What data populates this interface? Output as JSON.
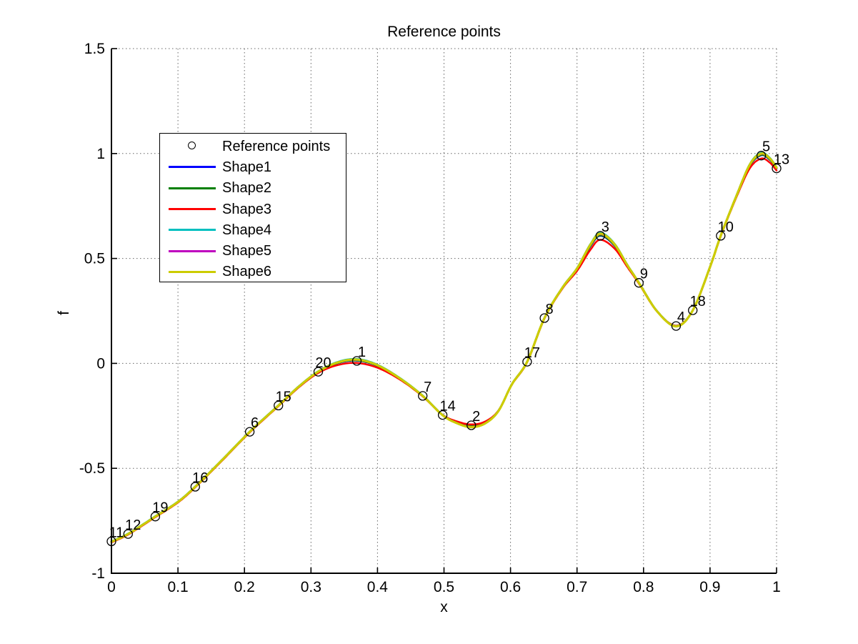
{
  "title": "Reference points",
  "chart_data": {
    "type": "line",
    "title": "Reference points",
    "xlabel": "x",
    "ylabel": "f",
    "xlim": [
      0,
      1
    ],
    "ylim": [
      -1,
      1.5
    ],
    "grid": "dotted",
    "grid_color": "#666666",
    "axis_color": "#000000",
    "x_ticks": {
      "values": [
        0,
        0.1,
        0.2,
        0.3,
        0.4,
        0.5,
        0.6,
        0.7,
        0.8,
        0.9,
        1
      ],
      "labels": [
        "0",
        "0.1",
        "0.2",
        "0.3",
        "0.4",
        "0.5",
        "0.6",
        "0.7",
        "0.8",
        "0.9",
        "1"
      ]
    },
    "y_ticks": {
      "values": [
        -1,
        -0.5,
        0,
        0.5,
        1,
        1.5
      ],
      "labels": [
        "-1",
        "-0.5",
        "0",
        "0.5",
        "1",
        "1.5"
      ]
    },
    "legend": {
      "position": "upper-left",
      "entries": [
        {
          "label": "Reference points",
          "type": "marker",
          "marker": "circle",
          "color": "#000000"
        },
        {
          "label": "Shape1",
          "type": "line",
          "color": "#0000FF"
        },
        {
          "label": "Shape2",
          "type": "line",
          "color": "#007F00"
        },
        {
          "label": "Shape3",
          "type": "line",
          "color": "#FF0000"
        },
        {
          "label": "Shape4",
          "type": "line",
          "color": "#00BFBF"
        },
        {
          "label": "Shape5",
          "type": "line",
          "color": "#BF00BF"
        },
        {
          "label": "Shape6",
          "type": "line",
          "color": "#CCCC00"
        }
      ]
    },
    "reference_points": [
      {
        "label": "1",
        "x": 0.369,
        "f": 0.012
      },
      {
        "label": "2",
        "x": 0.541,
        "f": -0.295
      },
      {
        "label": "3",
        "x": 0.735,
        "f": 0.608
      },
      {
        "label": "4",
        "x": 0.849,
        "f": 0.178
      },
      {
        "label": "5",
        "x": 0.977,
        "f": 0.99
      },
      {
        "label": "6",
        "x": 0.208,
        "f": -0.326
      },
      {
        "label": "7",
        "x": 0.468,
        "f": -0.155
      },
      {
        "label": "8",
        "x": 0.651,
        "f": 0.216
      },
      {
        "label": "9",
        "x": 0.793,
        "f": 0.384
      },
      {
        "label": "10",
        "x": 0.916,
        "f": 0.608
      },
      {
        "label": "11",
        "x": 0.0,
        "f": -0.848
      },
      {
        "label": "12",
        "x": 0.025,
        "f": -0.813
      },
      {
        "label": "13",
        "x": 1.0,
        "f": 0.929
      },
      {
        "label": "14",
        "x": 0.498,
        "f": -0.246
      },
      {
        "label": "15",
        "x": 0.251,
        "f": -0.201
      },
      {
        "label": "16",
        "x": 0.126,
        "f": -0.588
      },
      {
        "label": "17",
        "x": 0.625,
        "f": 0.008
      },
      {
        "label": "18",
        "x": 0.874,
        "f": 0.253
      },
      {
        "label": "19",
        "x": 0.066,
        "f": -0.73
      },
      {
        "label": "20",
        "x": 0.311,
        "f": -0.04
      }
    ],
    "base_curve": [
      [
        0.0,
        -0.85
      ],
      [
        0.025,
        -0.813
      ],
      [
        0.066,
        -0.73
      ],
      [
        0.1,
        -0.66
      ],
      [
        0.126,
        -0.588
      ],
      [
        0.165,
        -0.465
      ],
      [
        0.208,
        -0.326
      ],
      [
        0.251,
        -0.201
      ],
      [
        0.282,
        -0.11
      ],
      [
        0.311,
        -0.04
      ],
      [
        0.34,
        0.002
      ],
      [
        0.369,
        0.015
      ],
      [
        0.4,
        -0.011
      ],
      [
        0.435,
        -0.075
      ],
      [
        0.468,
        -0.155
      ],
      [
        0.498,
        -0.246
      ],
      [
        0.52,
        -0.283
      ],
      [
        0.541,
        -0.3
      ],
      [
        0.562,
        -0.283
      ],
      [
        0.582,
        -0.225
      ],
      [
        0.602,
        -0.1
      ],
      [
        0.625,
        0.008
      ],
      [
        0.651,
        0.216
      ],
      [
        0.678,
        0.36
      ],
      [
        0.7,
        0.45
      ],
      [
        0.72,
        0.56
      ],
      [
        0.735,
        0.612
      ],
      [
        0.756,
        0.565
      ],
      [
        0.776,
        0.465
      ],
      [
        0.793,
        0.384
      ],
      [
        0.82,
        0.25
      ],
      [
        0.849,
        0.178
      ],
      [
        0.874,
        0.253
      ],
      [
        0.9,
        0.46
      ],
      [
        0.916,
        0.608
      ],
      [
        0.94,
        0.8
      ],
      [
        0.96,
        0.945
      ],
      [
        0.977,
        0.995
      ],
      [
        0.99,
        0.972
      ],
      [
        1.0,
        0.93
      ]
    ],
    "deviation_bumps": [
      {
        "x": 0.369,
        "w": 0.05,
        "s": 0.5
      },
      {
        "x": 0.541,
        "w": 0.04,
        "s": -0.6
      },
      {
        "x": 0.735,
        "w": 0.033,
        "s": 1.0
      },
      {
        "x": 0.849,
        "w": 0.028,
        "s": -0.25
      },
      {
        "x": 0.977,
        "w": 0.028,
        "s": 0.8
      }
    ],
    "series": [
      {
        "name": "Shape1",
        "color": "#0000FF",
        "width": 2.5,
        "dev_c": 0.0,
        "dev_a": -0.004
      },
      {
        "name": "Shape2",
        "color": "#007F00",
        "width": 2.5,
        "dev_c": 0.0,
        "dev_a": -0.002
      },
      {
        "name": "Shape3",
        "color": "#FF0000",
        "width": 2.5,
        "dev_c": -0.003,
        "dev_a": -0.02
      },
      {
        "name": "Shape4",
        "color": "#00BFBF",
        "width": 2.5,
        "dev_c": 0.002,
        "dev_a": 0.008
      },
      {
        "name": "Shape5",
        "color": "#BF00BF",
        "width": 2.5,
        "dev_c": 0.0,
        "dev_a": 0.003
      },
      {
        "name": "Shape6",
        "color": "#CCCC00",
        "width": 3.2,
        "dev_c": 0.0,
        "dev_a": 0.006
      }
    ],
    "marker": {
      "shape": "circle",
      "radius": 6,
      "stroke": "#000000",
      "stroke_width": 1.3
    },
    "point_label_color": "#000000"
  }
}
